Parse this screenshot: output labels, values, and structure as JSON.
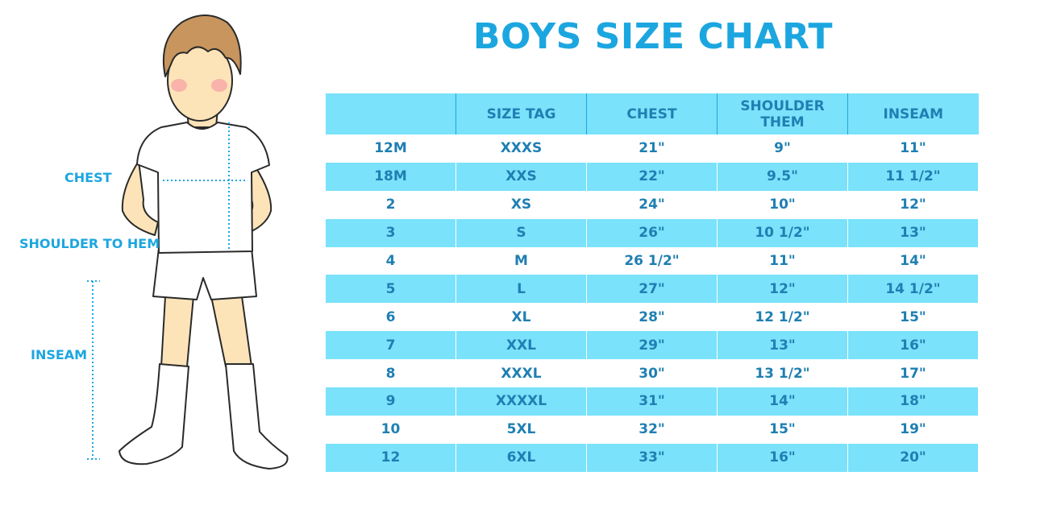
{
  "title": "BOYS SIZE CHART",
  "figure": {
    "labels": {
      "chest": "CHEST",
      "shoulder_to_hem": "SHOULDER TO HEM",
      "inseam": "INSEAM"
    }
  },
  "colors": {
    "accent": "#1ca6e0",
    "row_fill": "#7ae2fb",
    "table_text": "#1f7fb2"
  },
  "table": {
    "headers": [
      "",
      "SIZE TAG",
      "CHEST",
      "SHOULDER THEM",
      "INSEAM"
    ],
    "rows": [
      [
        "12M",
        "XXXS",
        "21\"",
        "9\"",
        "11\""
      ],
      [
        "18M",
        "XXS",
        "22\"",
        "9.5\"",
        "11 1/2\""
      ],
      [
        "2",
        "XS",
        "24\"",
        "10\"",
        "12\""
      ],
      [
        "3",
        "S",
        "26\"",
        "10 1/2\"",
        "13\""
      ],
      [
        "4",
        "M",
        "26 1/2\"",
        "11\"",
        "14\""
      ],
      [
        "5",
        "L",
        "27\"",
        "12\"",
        "14 1/2\""
      ],
      [
        "6",
        "XL",
        "28\"",
        "12 1/2\"",
        "15\""
      ],
      [
        "7",
        "XXL",
        "29\"",
        "13\"",
        "16\""
      ],
      [
        "8",
        "XXXL",
        "30\"",
        "13 1/2\"",
        "17\""
      ],
      [
        "9",
        "XXXXL",
        "31\"",
        "14\"",
        "18\""
      ],
      [
        "10",
        "5XL",
        "32\"",
        "15\"",
        "19\""
      ],
      [
        "12",
        "6XL",
        "33\"",
        "16\"",
        "20\""
      ]
    ]
  }
}
